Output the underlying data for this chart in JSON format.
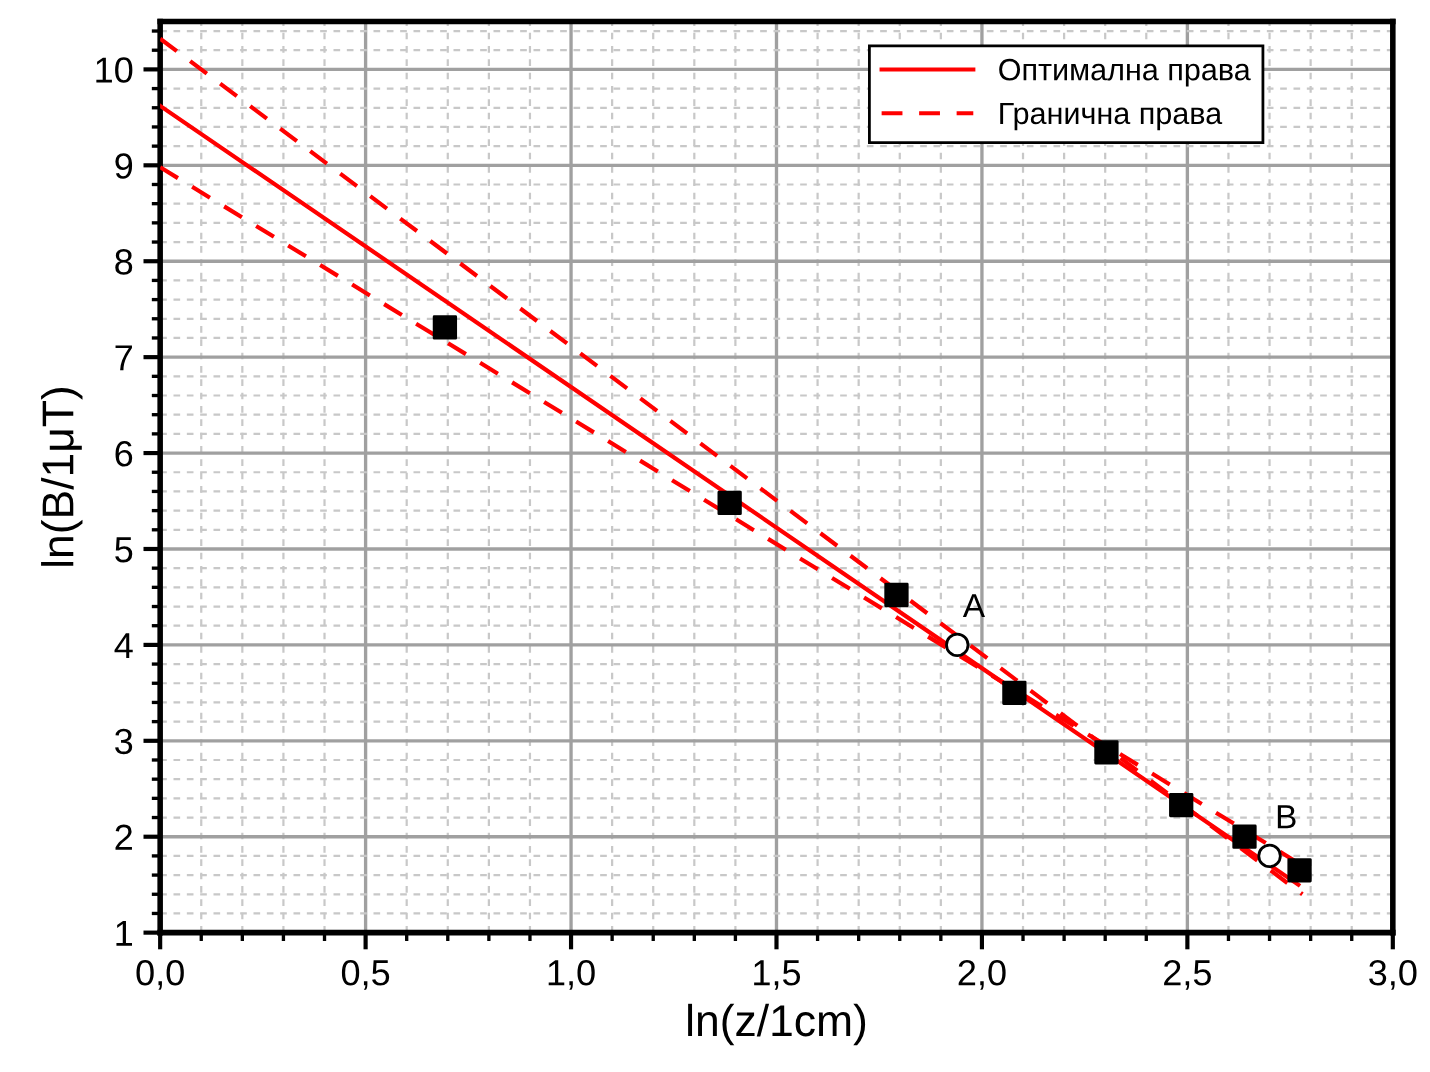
{
  "chart_data": {
    "type": "scatter",
    "xlabel": "ln(z/1cm)",
    "ylabel": "ln(B/1μT)",
    "xlim": [
      0,
      3
    ],
    "ylim": [
      1,
      10.5
    ],
    "xticks": [
      {
        "value": 0,
        "label": "0,0"
      },
      {
        "value": 0.5,
        "label": "0,5"
      },
      {
        "value": 1,
        "label": "1,0"
      },
      {
        "value": 1.5,
        "label": "1,5"
      },
      {
        "value": 2,
        "label": "2,0"
      },
      {
        "value": 2.5,
        "label": "2,5"
      },
      {
        "value": 3,
        "label": "3,0"
      }
    ],
    "yticks": [
      1,
      2,
      3,
      4,
      5,
      6,
      7,
      8,
      9,
      10
    ],
    "grid": true,
    "legend": "top",
    "series": [
      {
        "type": "line",
        "name": "Оптимална права",
        "color": "#ff0000",
        "line_style": "solid",
        "marker": "none",
        "x": [
          0,
          2.77
        ],
        "values": [
          9.62,
          1.5
        ]
      },
      {
        "type": "line",
        "name": "Гранична права",
        "color": "#ff0000",
        "line_style": "dashed",
        "marker": "none",
        "x": [
          0,
          2.78
        ],
        "values": [
          10.32,
          1.4
        ]
      },
      {
        "type": "line",
        "color": "#ff0000",
        "line_style": "dashed",
        "marker": "none",
        "x": [
          0,
          2.78
        ],
        "values": [
          8.98,
          1.7
        ]
      },
      {
        "color": "#000000",
        "marker": "square",
        "x": [
          0.693,
          1.386,
          1.792,
          2.079,
          2.303,
          2.485,
          2.639,
          2.773
        ],
        "values": [
          7.31,
          5.48,
          4.52,
          3.5,
          2.88,
          2.33,
          2.0,
          1.65
        ]
      },
      {
        "color": "#ffffff",
        "marker": "circle",
        "x": [
          1.94,
          2.7
        ],
        "values": [
          4.0,
          1.8
        ]
      }
    ],
    "annotations": [
      {
        "text": "A",
        "x": 1.94,
        "y": 4.0
      },
      {
        "text": "B",
        "x": 2.7,
        "y": 1.8
      }
    ]
  }
}
